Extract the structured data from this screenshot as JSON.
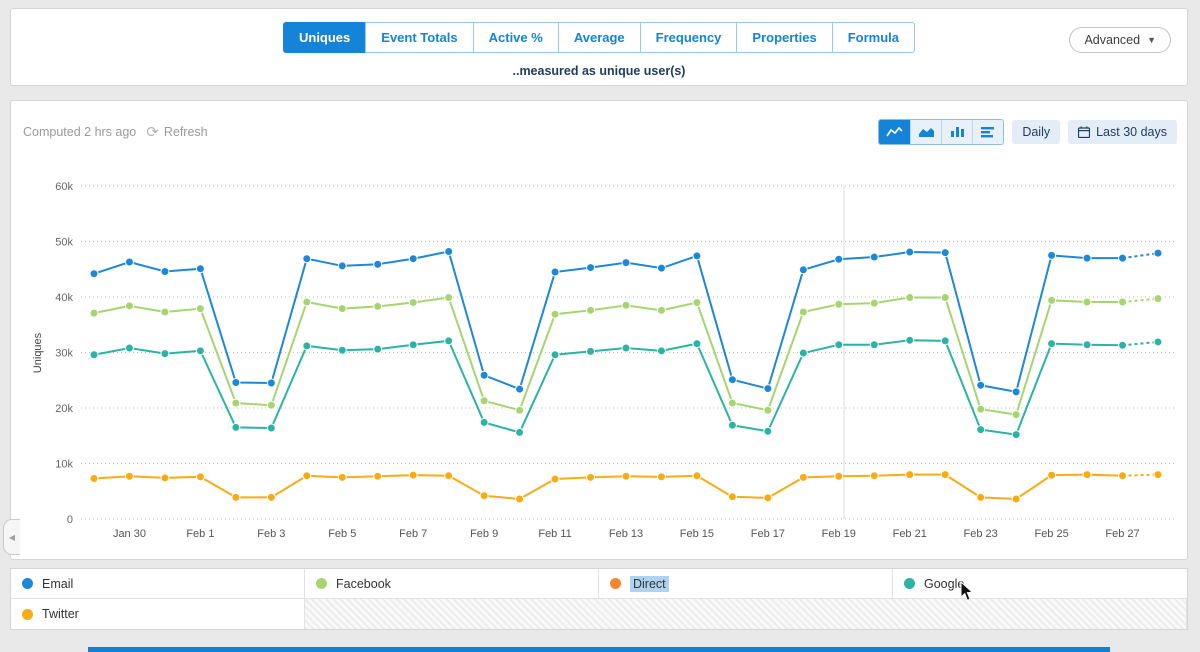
{
  "header": {
    "tabs": [
      {
        "label": "Uniques",
        "active": true
      },
      {
        "label": "Event Totals",
        "active": false
      },
      {
        "label": "Active %",
        "active": false
      },
      {
        "label": "Average",
        "active": false
      },
      {
        "label": "Frequency",
        "active": false
      },
      {
        "label": "Properties",
        "active": false
      },
      {
        "label": "Formula",
        "active": false
      }
    ],
    "advanced_label": "Advanced",
    "caption": "..measured as unique user(s)"
  },
  "toolbar": {
    "computed_text": "Computed 2 hrs ago",
    "refresh_label": "Refresh",
    "daily_label": "Daily",
    "range_label": "Last 30 days"
  },
  "chart_data": {
    "type": "line",
    "title": "",
    "xlabel": "",
    "ylabel": "Uniques",
    "values_unit": "thousands",
    "ylim": [
      0,
      60
    ],
    "ytick_labels": [
      "0",
      "10k",
      "20k",
      "30k",
      "40k",
      "50k",
      "60k"
    ],
    "grid": "dotted-horizontal",
    "legend_position": "bottom",
    "dashed_tail_segments": 1,
    "x_dates": [
      "Jan 29",
      "Jan 30",
      "Jan 31",
      "Feb 1",
      "Feb 2",
      "Feb 3",
      "Feb 4",
      "Feb 5",
      "Feb 6",
      "Feb 7",
      "Feb 8",
      "Feb 9",
      "Feb 10",
      "Feb 11",
      "Feb 12",
      "Feb 13",
      "Feb 14",
      "Feb 15",
      "Feb 16",
      "Feb 17",
      "Feb 18",
      "Feb 19",
      "Feb 20",
      "Feb 21",
      "Feb 22",
      "Feb 23",
      "Feb 24",
      "Feb 25",
      "Feb 26",
      "Feb 27",
      "Feb 28"
    ],
    "x_tick_labels": [
      "Jan 30",
      "Feb 1",
      "Feb 3",
      "Feb 5",
      "Feb 7",
      "Feb 9",
      "Feb 11",
      "Feb 13",
      "Feb 15",
      "Feb 17",
      "Feb 19",
      "Feb 21",
      "Feb 23",
      "Feb 25",
      "Feb 27"
    ],
    "tick_start_index": 1,
    "tick_step": 2,
    "series": [
      {
        "name": "Email",
        "color": "#1d87d8",
        "values": [
          44.2,
          46.3,
          44.6,
          45.1,
          24.6,
          24.5,
          46.9,
          45.6,
          45.9,
          46.9,
          48.2,
          25.9,
          23.4,
          44.5,
          45.3,
          46.2,
          45.2,
          47.4,
          25.1,
          23.5,
          44.9,
          46.8,
          47.2,
          48.1,
          48.0,
          24.1,
          22.9,
          47.5,
          47.0,
          47.0,
          47.9
        ]
      },
      {
        "name": "Facebook",
        "color": "#a6d46f",
        "values": [
          37.1,
          38.4,
          37.3,
          37.9,
          20.9,
          20.5,
          39.1,
          37.9,
          38.3,
          39.0,
          39.9,
          21.3,
          19.6,
          36.9,
          37.6,
          38.5,
          37.6,
          39.0,
          20.9,
          19.6,
          37.3,
          38.7,
          38.9,
          39.9,
          39.9,
          19.8,
          18.8,
          39.4,
          39.1,
          39.1,
          39.7
        ]
      },
      {
        "name": "Google",
        "color": "#2bb3a6",
        "values": [
          29.6,
          30.8,
          29.8,
          30.3,
          16.5,
          16.4,
          31.2,
          30.4,
          30.6,
          31.4,
          32.1,
          17.4,
          15.6,
          29.6,
          30.2,
          30.8,
          30.3,
          31.6,
          16.9,
          15.8,
          29.9,
          31.4,
          31.4,
          32.2,
          32.1,
          16.1,
          15.2,
          31.6,
          31.4,
          31.3,
          31.9
        ]
      },
      {
        "name": "Twitter",
        "color": "#f9ab13",
        "values": [
          7.3,
          7.7,
          7.4,
          7.6,
          3.9,
          3.9,
          7.8,
          7.5,
          7.7,
          7.9,
          7.8,
          4.2,
          3.6,
          7.2,
          7.5,
          7.7,
          7.6,
          7.8,
          4.0,
          3.8,
          7.5,
          7.7,
          7.8,
          8.0,
          8.0,
          3.9,
          3.6,
          7.9,
          8.0,
          7.8,
          8.0
        ]
      }
    ]
  },
  "legend": {
    "items": [
      {
        "label": "Email",
        "color": "#1d87d8",
        "highlighted": false
      },
      {
        "label": "Facebook",
        "color": "#a6d46f",
        "highlighted": false
      },
      {
        "label": "Direct",
        "color": "#f6862e",
        "highlighted": true
      },
      {
        "label": "Google",
        "color": "#2bb3a6",
        "highlighted": false
      },
      {
        "label": "Twitter",
        "color": "#f9ab13",
        "highlighted": false
      }
    ]
  }
}
